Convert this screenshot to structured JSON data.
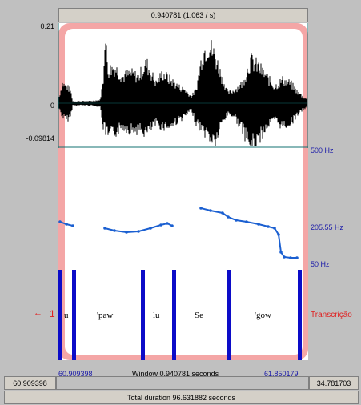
{
  "top_bar": {
    "selection_label": "0.940781 (1.063 / s)"
  },
  "waveform": {
    "y_max": "0.21",
    "y_zero": "0",
    "y_min": "-0.09814"
  },
  "pitch": {
    "top_label": "500 Hz",
    "mid_label": "205.55 Hz",
    "bottom_label": "50 Hz"
  },
  "tier": {
    "number": "1",
    "name": "Transcrição",
    "segments": [
      "u",
      "'paw",
      "lu",
      "Se",
      "'gow"
    ]
  },
  "selection_bar": {
    "start": "60.909398",
    "window": "Window 0.940781 seconds",
    "end": "61.850179"
  },
  "visible_bar": {
    "left": "60.909398",
    "right": "34.781703"
  },
  "total_bar": {
    "label": "Total duration 96.631882 seconds"
  },
  "colors": {
    "selection": "#f4a6a6",
    "boundary": "#0c0cc8",
    "pitch": "#1a5fd1"
  }
}
